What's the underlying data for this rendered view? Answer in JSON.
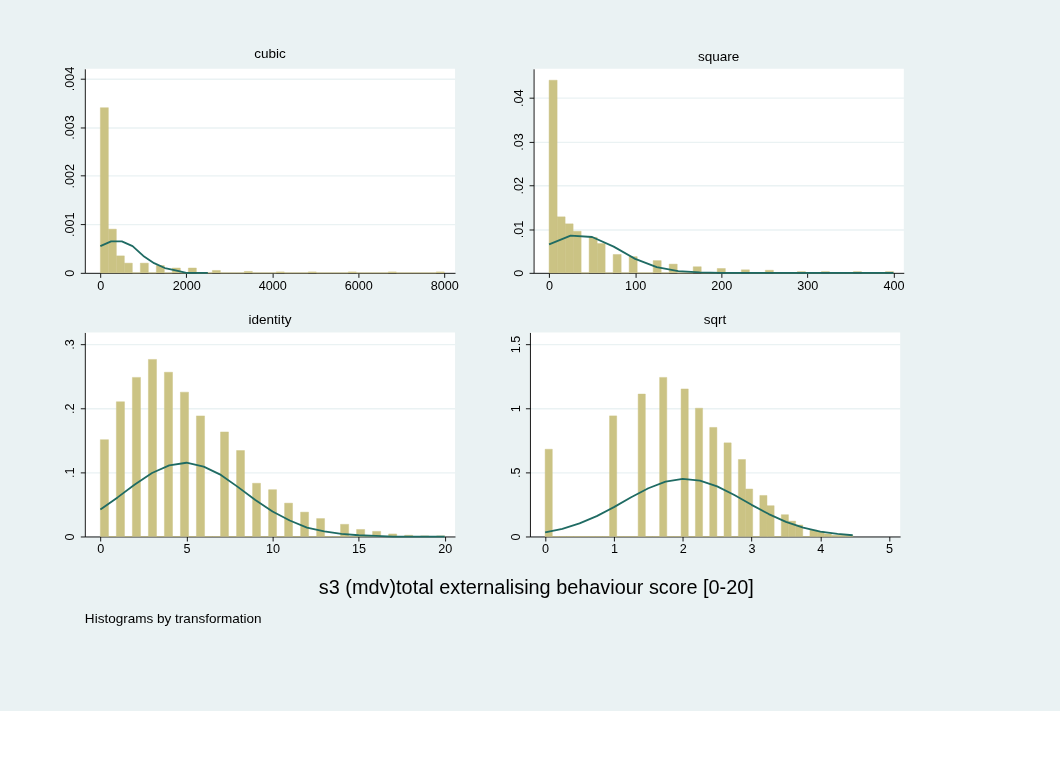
{
  "chart_data": [
    {
      "type": "histogram",
      "title": "cubic",
      "color": "#cbc384",
      "grid": "y",
      "bins": [
        0,
        186,
        372,
        558,
        744,
        930,
        1116,
        1302,
        1488,
        1674,
        1860,
        2047,
        2233,
        2419,
        2605,
        2791,
        2977,
        3163,
        3349,
        3535,
        3721,
        3907,
        4093,
        4279,
        4465,
        4651,
        4837,
        5023,
        5209,
        5395,
        5581,
        5767,
        5953,
        6140,
        6326,
        6512,
        6698,
        6884,
        7070,
        7256,
        7442,
        7628,
        7814,
        8000
      ],
      "values": [
        0.0034,
        0.0009,
        0.00035,
        0.0002,
        0,
        0.0002,
        0,
        0.00015,
        0,
        0.0001,
        0,
        0.0001,
        0,
        0,
        5e-05,
        0,
        0,
        0,
        3e-05,
        0,
        0,
        0,
        2e-05,
        0,
        0,
        0,
        2e-05,
        0,
        0,
        0,
        0,
        2e-05,
        0,
        0,
        0,
        0,
        2e-05,
        0,
        0,
        0,
        0,
        0,
        2e-05
      ],
      "series": [
        {
          "type": "line",
          "color": "#1f6b63",
          "x": [
            0,
            250,
            500,
            750,
            1000,
            1250,
            1500,
            1750,
            2000,
            2500
          ],
          "values": [
            0.00055,
            0.00065,
            0.00065,
            0.00055,
            0.00035,
            0.0002,
            0.0001,
            5e-05,
            0,
            0
          ]
        }
      ],
      "xlim": [
        -360,
        8250
      ],
      "ylim": [
        0,
        0.0042
      ],
      "xticks": [
        0,
        2000,
        4000,
        6000,
        8000
      ],
      "yticks": [
        0,
        {
          "value": 0.001,
          "label": ".001"
        },
        {
          "value": 0.002,
          "label": ".002"
        },
        {
          "value": 0.003,
          "label": ".003"
        },
        {
          "value": 0.004,
          "label": ".004"
        }
      ]
    },
    {
      "type": "histogram",
      "title": "square",
      "color": "#cbc384",
      "grid": "y",
      "bins": [
        0,
        9.3,
        18.6,
        27.9,
        37.2,
        46.5,
        55.8,
        65.1,
        74.4,
        83.7,
        93.0,
        102.3,
        111.6,
        120.9,
        130.2,
        139.5,
        148.8,
        158.1,
        167.4,
        176.7,
        186.0,
        195.3,
        204.7,
        214.0,
        223.3,
        232.6,
        241.9,
        251.2,
        260.5,
        269.8,
        279.1,
        288.4,
        297.7,
        307.0,
        316.3,
        325.6,
        334.9,
        344.2,
        353.5,
        362.8,
        372.1,
        381.4,
        390.7,
        400
      ],
      "values": [
        0.044,
        0.0128,
        0.0112,
        0.0095,
        0,
        0.0081,
        0.0067,
        0,
        0.0042,
        0,
        0.0037,
        0,
        0,
        0.0028,
        0,
        0.002,
        0,
        0,
        0.0014,
        0,
        0,
        0.001,
        0,
        0,
        0.0007,
        0,
        0,
        0.0006,
        0,
        0,
        0,
        0.0003,
        0,
        0,
        0.0003,
        0,
        0,
        0,
        0.0003,
        0,
        0,
        0,
        0.0003
      ],
      "series": [
        {
          "type": "line",
          "color": "#1f6b63",
          "x": [
            0,
            25,
            50,
            75,
            100,
            125,
            150,
            175,
            200,
            300,
            400
          ],
          "values": [
            0.0065,
            0.0085,
            0.0082,
            0.006,
            0.0032,
            0.0013,
            0.0004,
            0.0001,
            0,
            0,
            0
          ]
        }
      ],
      "xlim": [
        -18,
        412
      ],
      "ylim": [
        0,
        0.0466
      ],
      "xticks": [
        0,
        100,
        200,
        300,
        400
      ],
      "yticks": [
        0,
        {
          "value": 0.01,
          "label": ".01"
        },
        {
          "value": 0.02,
          "label": ".02"
        },
        {
          "value": 0.03,
          "label": ".03"
        },
        {
          "value": 0.04,
          "label": ".04"
        }
      ]
    },
    {
      "type": "histogram",
      "title": "identity",
      "color": "#cbc384",
      "grid": "y",
      "bins": [
        0,
        0.47,
        0.93,
        1.4,
        1.86,
        2.33,
        2.79,
        3.26,
        3.72,
        4.19,
        4.65,
        5.12,
        5.58,
        6.05,
        6.51,
        6.98,
        7.44,
        7.91,
        8.37,
        8.84,
        9.3,
        9.77,
        10.23,
        10.7,
        11.16,
        11.63,
        12.09,
        12.56,
        13.02,
        13.49,
        13.95,
        14.42,
        14.88,
        15.35,
        15.81,
        16.28,
        16.74,
        17.21,
        17.67,
        18.14,
        18.6,
        19.07,
        19.53,
        20
      ],
      "values": [
        0.151,
        0,
        0.21,
        0,
        0.248,
        0,
        0.276,
        0,
        0.256,
        0,
        0.225,
        0,
        0.188,
        0,
        0,
        0.163,
        0,
        0.134,
        0,
        0.083,
        0,
        0.073,
        0,
        0.052,
        0,
        0.038,
        0,
        0.028,
        0,
        0,
        0.019,
        0,
        0.011,
        0,
        0.008,
        0,
        0.004,
        0,
        0.002,
        0,
        0.001,
        0,
        0.001
      ],
      "series": [
        {
          "type": "line",
          "color": "#1f6b63",
          "x": [
            0,
            1,
            2,
            3,
            4,
            5,
            6,
            7,
            8,
            9,
            10,
            11,
            12,
            13,
            14,
            15,
            16,
            17,
            18,
            19,
            20
          ],
          "values": [
            0.042,
            0.061,
            0.081,
            0.099,
            0.111,
            0.115,
            0.109,
            0.096,
            0.077,
            0.057,
            0.039,
            0.025,
            0.014,
            0.008,
            0.004,
            0.002,
            0.001,
            0,
            0,
            0,
            0
          ]
        }
      ],
      "xlim": [
        -0.9,
        20.6
      ],
      "ylim": [
        0,
        0.318
      ],
      "xticks": [
        0,
        5,
        10,
        15,
        20
      ],
      "yticks": [
        0,
        {
          "value": 0.1,
          "label": ".1"
        },
        {
          "value": 0.2,
          "label": ".2"
        },
        {
          "value": 0.3,
          "label": ".3"
        }
      ]
    },
    {
      "type": "histogram",
      "title": "sqrt",
      "color": "#cbc384",
      "grid": "y",
      "bins": [
        0,
        0.104,
        0.208,
        0.312,
        0.416,
        0.52,
        0.624,
        0.728,
        0.832,
        0.936,
        1.04,
        1.144,
        1.248,
        1.352,
        1.456,
        1.56,
        1.664,
        1.768,
        1.872,
        1.976,
        2.08,
        2.184,
        2.288,
        2.392,
        2.496,
        2.6,
        2.704,
        2.808,
        2.912,
        3.016,
        3.12,
        3.224,
        3.328,
        3.432,
        3.536,
        3.64,
        3.744,
        3.848,
        3.952,
        4.056,
        4.16,
        4.264,
        4.368,
        4.472
      ],
      "values": [
        0.68,
        0,
        0,
        0,
        0,
        0,
        0,
        0,
        0,
        0.94,
        0,
        0,
        0,
        1.11,
        0,
        0,
        1.24,
        0,
        0,
        1.15,
        0,
        1.0,
        0,
        0.85,
        0,
        0.73,
        0,
        0.6,
        0.37,
        0,
        0.32,
        0.24,
        0,
        0.17,
        0.12,
        0.09,
        0,
        0.05,
        0.04,
        0.02,
        0.01,
        0.01,
        0.01
      ],
      "series": [
        {
          "type": "line",
          "color": "#1f6b63",
          "x": [
            0,
            0.25,
            0.5,
            0.75,
            1,
            1.25,
            1.5,
            1.75,
            2,
            2.25,
            2.5,
            2.75,
            3,
            3.25,
            3.5,
            3.75,
            4,
            4.25,
            4.47
          ],
          "values": [
            0.033,
            0.06,
            0.102,
            0.159,
            0.229,
            0.306,
            0.376,
            0.428,
            0.45,
            0.436,
            0.391,
            0.324,
            0.247,
            0.175,
            0.114,
            0.069,
            0.038,
            0.02,
            0.01
          ]
        }
      ],
      "xlim": [
        -0.22,
        5.16
      ],
      "ylim": [
        0,
        1.59
      ],
      "xticks": [
        0,
        1,
        2,
        3,
        4,
        5
      ],
      "yticks": [
        0,
        {
          "value": 0.5,
          "label": ".5"
        },
        1,
        1.5
      ]
    },
    {
      "type": "other",
      "xlabel": "s3 (mdv)total externalising behaviour score [0-20]",
      "annotations": [
        "Histograms by transformation"
      ]
    }
  ]
}
